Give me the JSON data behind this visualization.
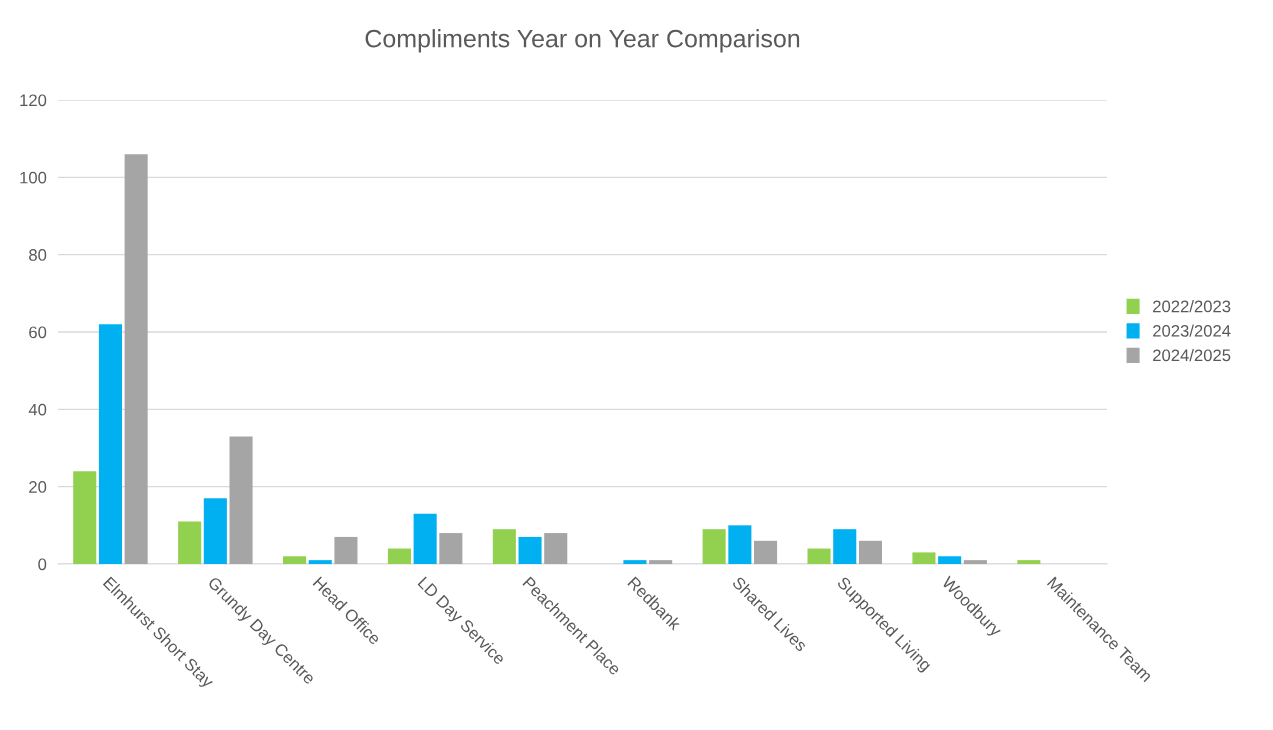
{
  "chart_data": {
    "type": "bar",
    "title": "Compliments Year on Year Comparison",
    "categories": [
      "Elmhurst Short Stay",
      "Grundy Day Centre",
      "Head Office",
      "LD Day Service",
      "Peachment Place",
      "Redbank",
      "Shared Lives",
      "Supported Living",
      "Woodbury",
      "Maintenance Team"
    ],
    "series": [
      {
        "name": "2022/2023",
        "color": "#92d050",
        "values": [
          24,
          11,
          2,
          4,
          9,
          0,
          9,
          4,
          3,
          1
        ]
      },
      {
        "name": "2023/2024",
        "color": "#00b0f0",
        "values": [
          62,
          17,
          1,
          13,
          7,
          1,
          10,
          9,
          2,
          0
        ]
      },
      {
        "name": "2024/2025",
        "color": "#a5a5a5",
        "values": [
          106,
          33,
          7,
          8,
          8,
          1,
          6,
          6,
          1,
          0
        ]
      }
    ],
    "ylim": [
      0,
      120
    ],
    "yticks": [
      0,
      20,
      40,
      60,
      80,
      100,
      120
    ],
    "grid": "y",
    "legend": "right"
  }
}
